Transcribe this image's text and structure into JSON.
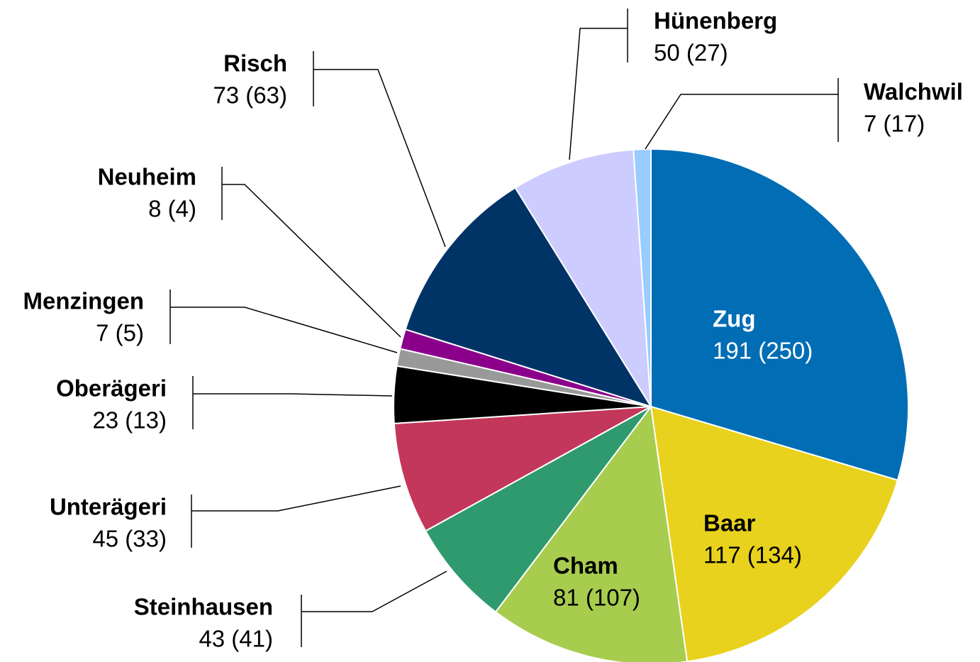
{
  "chart_data": {
    "type": "pie",
    "categories": [
      "Zug",
      "Baar",
      "Cham",
      "Steinhausen",
      "Unterägeri",
      "Oberägeri",
      "Menzingen",
      "Neuheim",
      "Risch",
      "Hünenberg",
      "Walchwil"
    ],
    "values": [
      191,
      117,
      81,
      43,
      45,
      23,
      7,
      8,
      73,
      50,
      7
    ],
    "value_labels": [
      "191 (250)",
      "117 (134)",
      "81 (107)",
      "43 (41)",
      "45 (33)",
      "23 (13)",
      "7 (5)",
      "8 (4)",
      "73 (63)",
      "50 (27)",
      "7 (17)"
    ],
    "colors": [
      "#006db4",
      "#e8d21d",
      "#a8cc4e",
      "#2e9a6e",
      "#c3375a",
      "#000000",
      "#999999",
      "#8b008b",
      "#003366",
      "#ccccff",
      "#99ccff"
    ]
  }
}
